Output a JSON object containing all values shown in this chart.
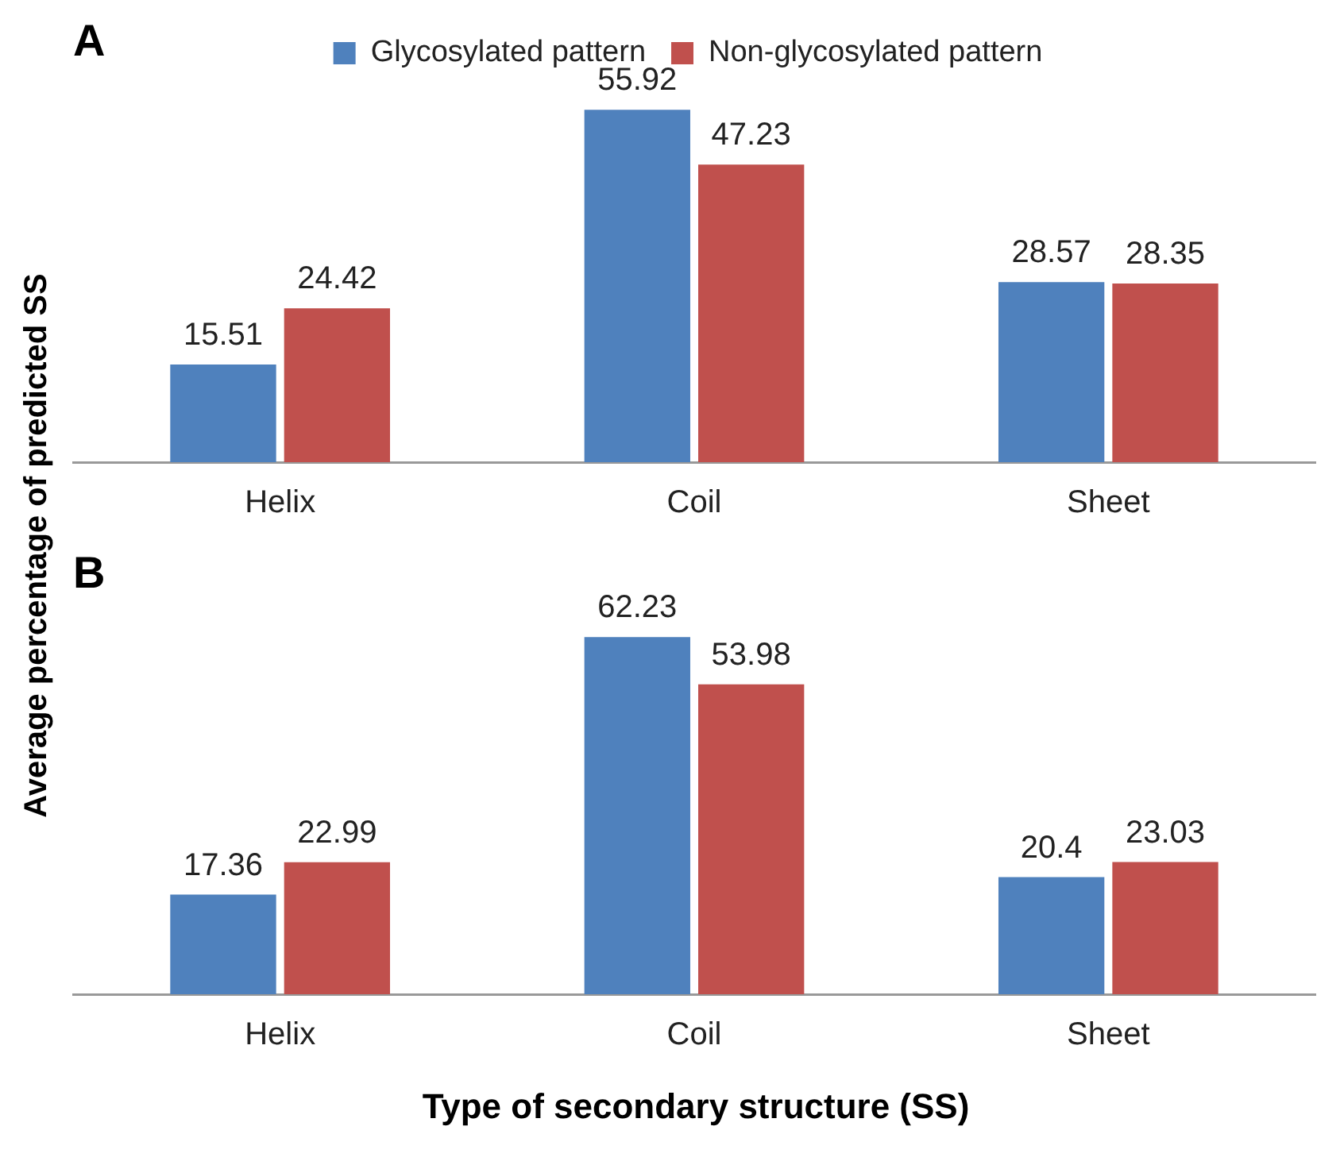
{
  "chart_data": [
    {
      "type": "bar",
      "title": "A",
      "ylabel": "Average percentage of predicted SS",
      "categories": [
        "Helix",
        "Coil",
        "Sheet"
      ],
      "series": [
        {
          "name": "Glycosylated pattern",
          "color": "#4f81bd",
          "values": [
            15.51,
            55.92,
            28.57
          ]
        },
        {
          "name": "Non-glycosylated pattern",
          "color": "#c0504d",
          "values": [
            24.42,
            47.23,
            28.35
          ]
        }
      ],
      "data_labels": true,
      "legend": "top",
      "grid": false
    },
    {
      "type": "bar",
      "title": "B",
      "xlabel": "Type of secondary structure (SS)",
      "categories": [
        "Helix",
        "Coil",
        "Sheet"
      ],
      "series": [
        {
          "color": "#4f81bd",
          "values": [
            17.36,
            62.23,
            20.4
          ]
        },
        {
          "color": "#c0504d",
          "values": [
            22.99,
            53.98,
            23.03
          ]
        }
      ],
      "data_labels": true,
      "grid": false
    }
  ]
}
